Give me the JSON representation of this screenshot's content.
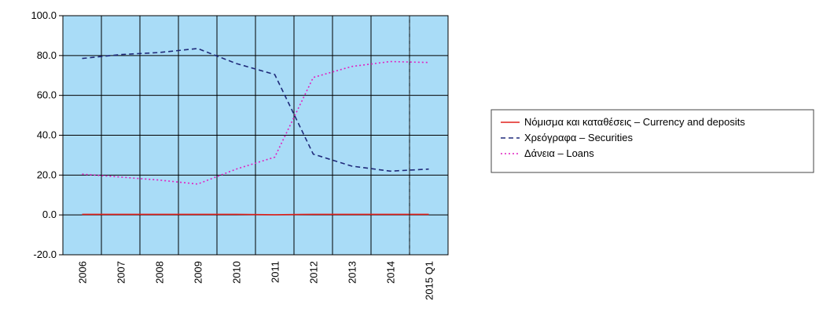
{
  "chart_data": {
    "type": "line",
    "title": "",
    "xlabel": "",
    "ylabel": "",
    "categories": [
      "2006",
      "2007",
      "2008",
      "2009",
      "2010",
      "2011",
      "2012",
      "2013",
      "2014",
      "2015 Q1"
    ],
    "ylim": [
      -20,
      100
    ],
    "yticks": [
      "100.0",
      "80.0",
      "60.0",
      "40.0",
      "20.0",
      "0.0",
      "-20.0"
    ],
    "ytick_values": [
      100,
      80,
      60,
      40,
      20,
      0,
      -20
    ],
    "grid": true,
    "background_color": "#a9dcf7",
    "vertical_marker_between": [
      "2014",
      "2015 Q1"
    ],
    "legend": {
      "placement": "right"
    },
    "series": [
      {
        "name": "Νόμισμα και καταθέσεις – Currency and deposits",
        "values": [
          0.3,
          0.3,
          0.3,
          0.3,
          0.3,
          0.1,
          0.3,
          0.3,
          0.3,
          0.3
        ],
        "color": "#e0201b",
        "style": "solid"
      },
      {
        "name": "Χρεόγραφα – Securities",
        "values": [
          78.5,
          80.5,
          81.5,
          83.5,
          76,
          70.5,
          30.5,
          24.5,
          22,
          23
        ],
        "color": "#1f2a7a",
        "style": "dashed"
      },
      {
        "name": "Δάνεια – Loans",
        "values": [
          20.5,
          19,
          17.5,
          15.5,
          23,
          29,
          69,
          74.5,
          77,
          76.5
        ],
        "color": "#e020c0",
        "style": "dotted"
      }
    ]
  }
}
